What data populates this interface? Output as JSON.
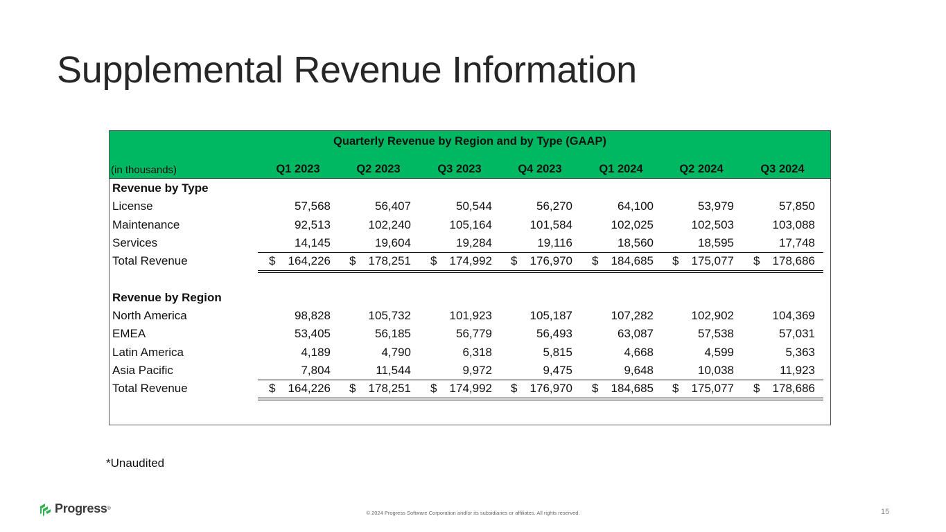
{
  "slide": {
    "title": "Supplemental Revenue Information",
    "note": "*Unaudited",
    "footer": {
      "logo_text": "Progress",
      "logo_reg": "®",
      "copyright": "© 2024 Progress Software Corporation and/or its subsidiaries or affiliates. All rights reserved.",
      "page_number": "15"
    },
    "colors": {
      "header_green": "#00b862",
      "text": "#111111"
    }
  },
  "table": {
    "title": "Quarterly Revenue by Region and by Type (GAAP)",
    "units_label": "(in thousands)",
    "columns": [
      "Q1 2023",
      "Q2 2023",
      "Q3 2023",
      "Q4 2023",
      "Q1 2024",
      "Q2 2024",
      "Q3 2024"
    ],
    "currency_symbol": "$",
    "by_type": {
      "label": "Revenue by Type",
      "rows": [
        {
          "label": "License",
          "values": [
            "57,568",
            "56,407",
            "50,544",
            "56,270",
            "64,100",
            "53,979",
            "57,850"
          ]
        },
        {
          "label": "Maintenance",
          "values": [
            "92,513",
            "102,240",
            "105,164",
            "101,584",
            "102,025",
            "102,503",
            "103,088"
          ]
        },
        {
          "label": "Services",
          "values": [
            "14,145",
            "19,604",
            "19,284",
            "19,116",
            "18,560",
            "18,595",
            "17,748"
          ]
        }
      ],
      "total": {
        "label": "Total Revenue",
        "values": [
          "164,226",
          "178,251",
          "174,992",
          "176,970",
          "184,685",
          "175,077",
          "178,686"
        ]
      }
    },
    "by_region": {
      "label": "Revenue by Region",
      "rows": [
        {
          "label": "North America",
          "values": [
            "98,828",
            "105,732",
            "101,923",
            "105,187",
            "107,282",
            "102,902",
            "104,369"
          ]
        },
        {
          "label": "EMEA",
          "values": [
            "53,405",
            "56,185",
            "56,779",
            "56,493",
            "63,087",
            "57,538",
            "57,031"
          ]
        },
        {
          "label": "Latin America",
          "values": [
            "4,189",
            "4,790",
            "6,318",
            "5,815",
            "4,668",
            "4,599",
            "5,363"
          ]
        },
        {
          "label": "Asia Pacific",
          "values": [
            "7,804",
            "11,544",
            "9,972",
            "9,475",
            "9,648",
            "10,038",
            "11,923"
          ]
        }
      ],
      "total": {
        "label": "Total Revenue",
        "values": [
          "164,226",
          "178,251",
          "174,992",
          "176,970",
          "184,685",
          "175,077",
          "178,686"
        ]
      }
    }
  }
}
